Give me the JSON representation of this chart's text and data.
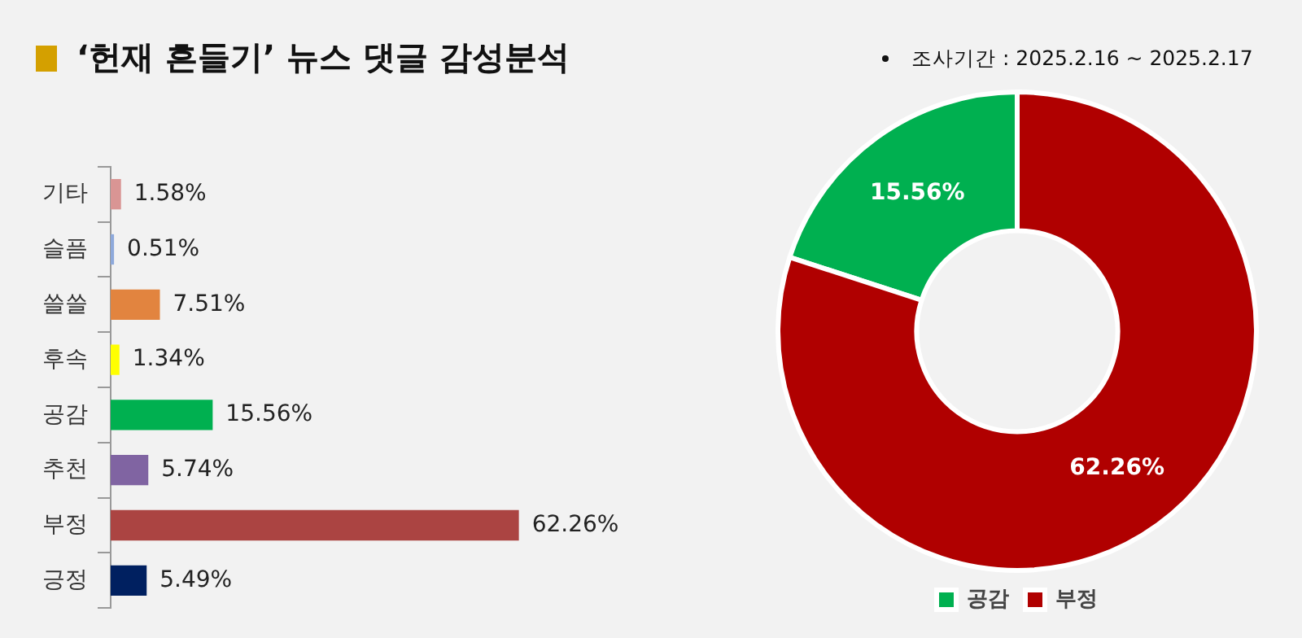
{
  "chart_data": [
    {
      "type": "bar",
      "title": "‘헌재 흔들기’ 뉴스 댓글 감성분석",
      "orientation": "horizontal",
      "categories": [
        "기타",
        "슬픔",
        "쓸쓸",
        "후속",
        "공감",
        "추천",
        "부정",
        "긍정"
      ],
      "values": [
        1.58,
        0.51,
        7.51,
        1.34,
        15.56,
        5.74,
        62.26,
        5.49
      ],
      "colors": [
        "#d99594",
        "#8ea9db",
        "#e2843f",
        "#ffff00",
        "#00b050",
        "#8064a2",
        "#ab4442",
        "#002060"
      ],
      "value_labels": [
        "1.58%",
        "0.51%",
        "7.51%",
        "1.34%",
        "15.56%",
        "5.74%",
        "62.26%",
        "5.49%"
      ],
      "legend": false
    },
    {
      "type": "donut",
      "annotations": [
        "조사기간 : 2025.2.16 ~ 2025.2.17"
      ],
      "categories": [
        "공감",
        "부정"
      ],
      "values": [
        15.56,
        62.26
      ],
      "colors": [
        "#00b050",
        "#b00000"
      ],
      "value_labels": [
        "15.56%",
        "62.26%"
      ],
      "legend": "bottom"
    }
  ]
}
